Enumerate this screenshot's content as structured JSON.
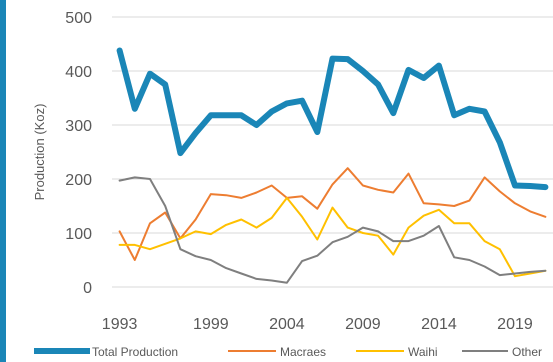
{
  "chart_data": {
    "type": "line",
    "ylabel": "Production (Koz)",
    "ylim": [
      0,
      500
    ],
    "yticks": [
      0,
      100,
      200,
      300,
      400,
      500
    ],
    "x": [
      1993,
      1994,
      1995,
      1996,
      1997,
      1998,
      1999,
      2000,
      2001,
      2002,
      2003,
      2004,
      2005,
      2006,
      2007,
      2008,
      2009,
      2010,
      2011,
      2012,
      2013,
      2014,
      2015,
      2016,
      2017,
      2018,
      2019,
      2020,
      2021
    ],
    "xlim": [
      1992.5,
      2021.5
    ],
    "xticks": [
      1993,
      1999,
      2004,
      2009,
      2014,
      2019
    ],
    "grid": "horizontal",
    "legend": "bottom",
    "series": [
      {
        "name": "Total Production",
        "color": "#1a86b7",
        "values": [
          438,
          330,
          395,
          375,
          248,
          285,
          318,
          318,
          318,
          300,
          325,
          340,
          345,
          287,
          423,
          422,
          400,
          375,
          322,
          402,
          387,
          410,
          318,
          330,
          325,
          268,
          188,
          187,
          185
        ]
      },
      {
        "name": "Macraes",
        "color": "#ed7d31",
        "values": [
          103,
          50,
          118,
          138,
          90,
          125,
          172,
          170,
          165,
          175,
          188,
          165,
          168,
          145,
          190,
          220,
          188,
          180,
          175,
          210,
          155,
          153,
          150,
          160,
          203,
          177,
          155,
          140,
          130
        ]
      },
      {
        "name": "Waihi",
        "color": "#ffc000",
        "values": [
          78,
          78,
          70,
          80,
          90,
          103,
          98,
          115,
          125,
          110,
          128,
          165,
          130,
          88,
          147,
          110,
          100,
          95,
          60,
          110,
          132,
          143,
          118,
          118,
          85,
          70,
          20,
          25,
          30
        ]
      },
      {
        "name": "Other",
        "color": "#7f7f7f",
        "values": [
          197,
          203,
          200,
          150,
          70,
          57,
          50,
          35,
          25,
          15,
          12,
          8,
          48,
          58,
          83,
          93,
          110,
          103,
          85,
          85,
          95,
          113,
          55,
          50,
          38,
          22,
          25,
          28,
          30
        ]
      }
    ]
  },
  "page": {
    "background": "#ffffff",
    "left_edge_color": "#1a86b7",
    "gridline_color": "#d9d9d9",
    "text_color": "#595959"
  }
}
